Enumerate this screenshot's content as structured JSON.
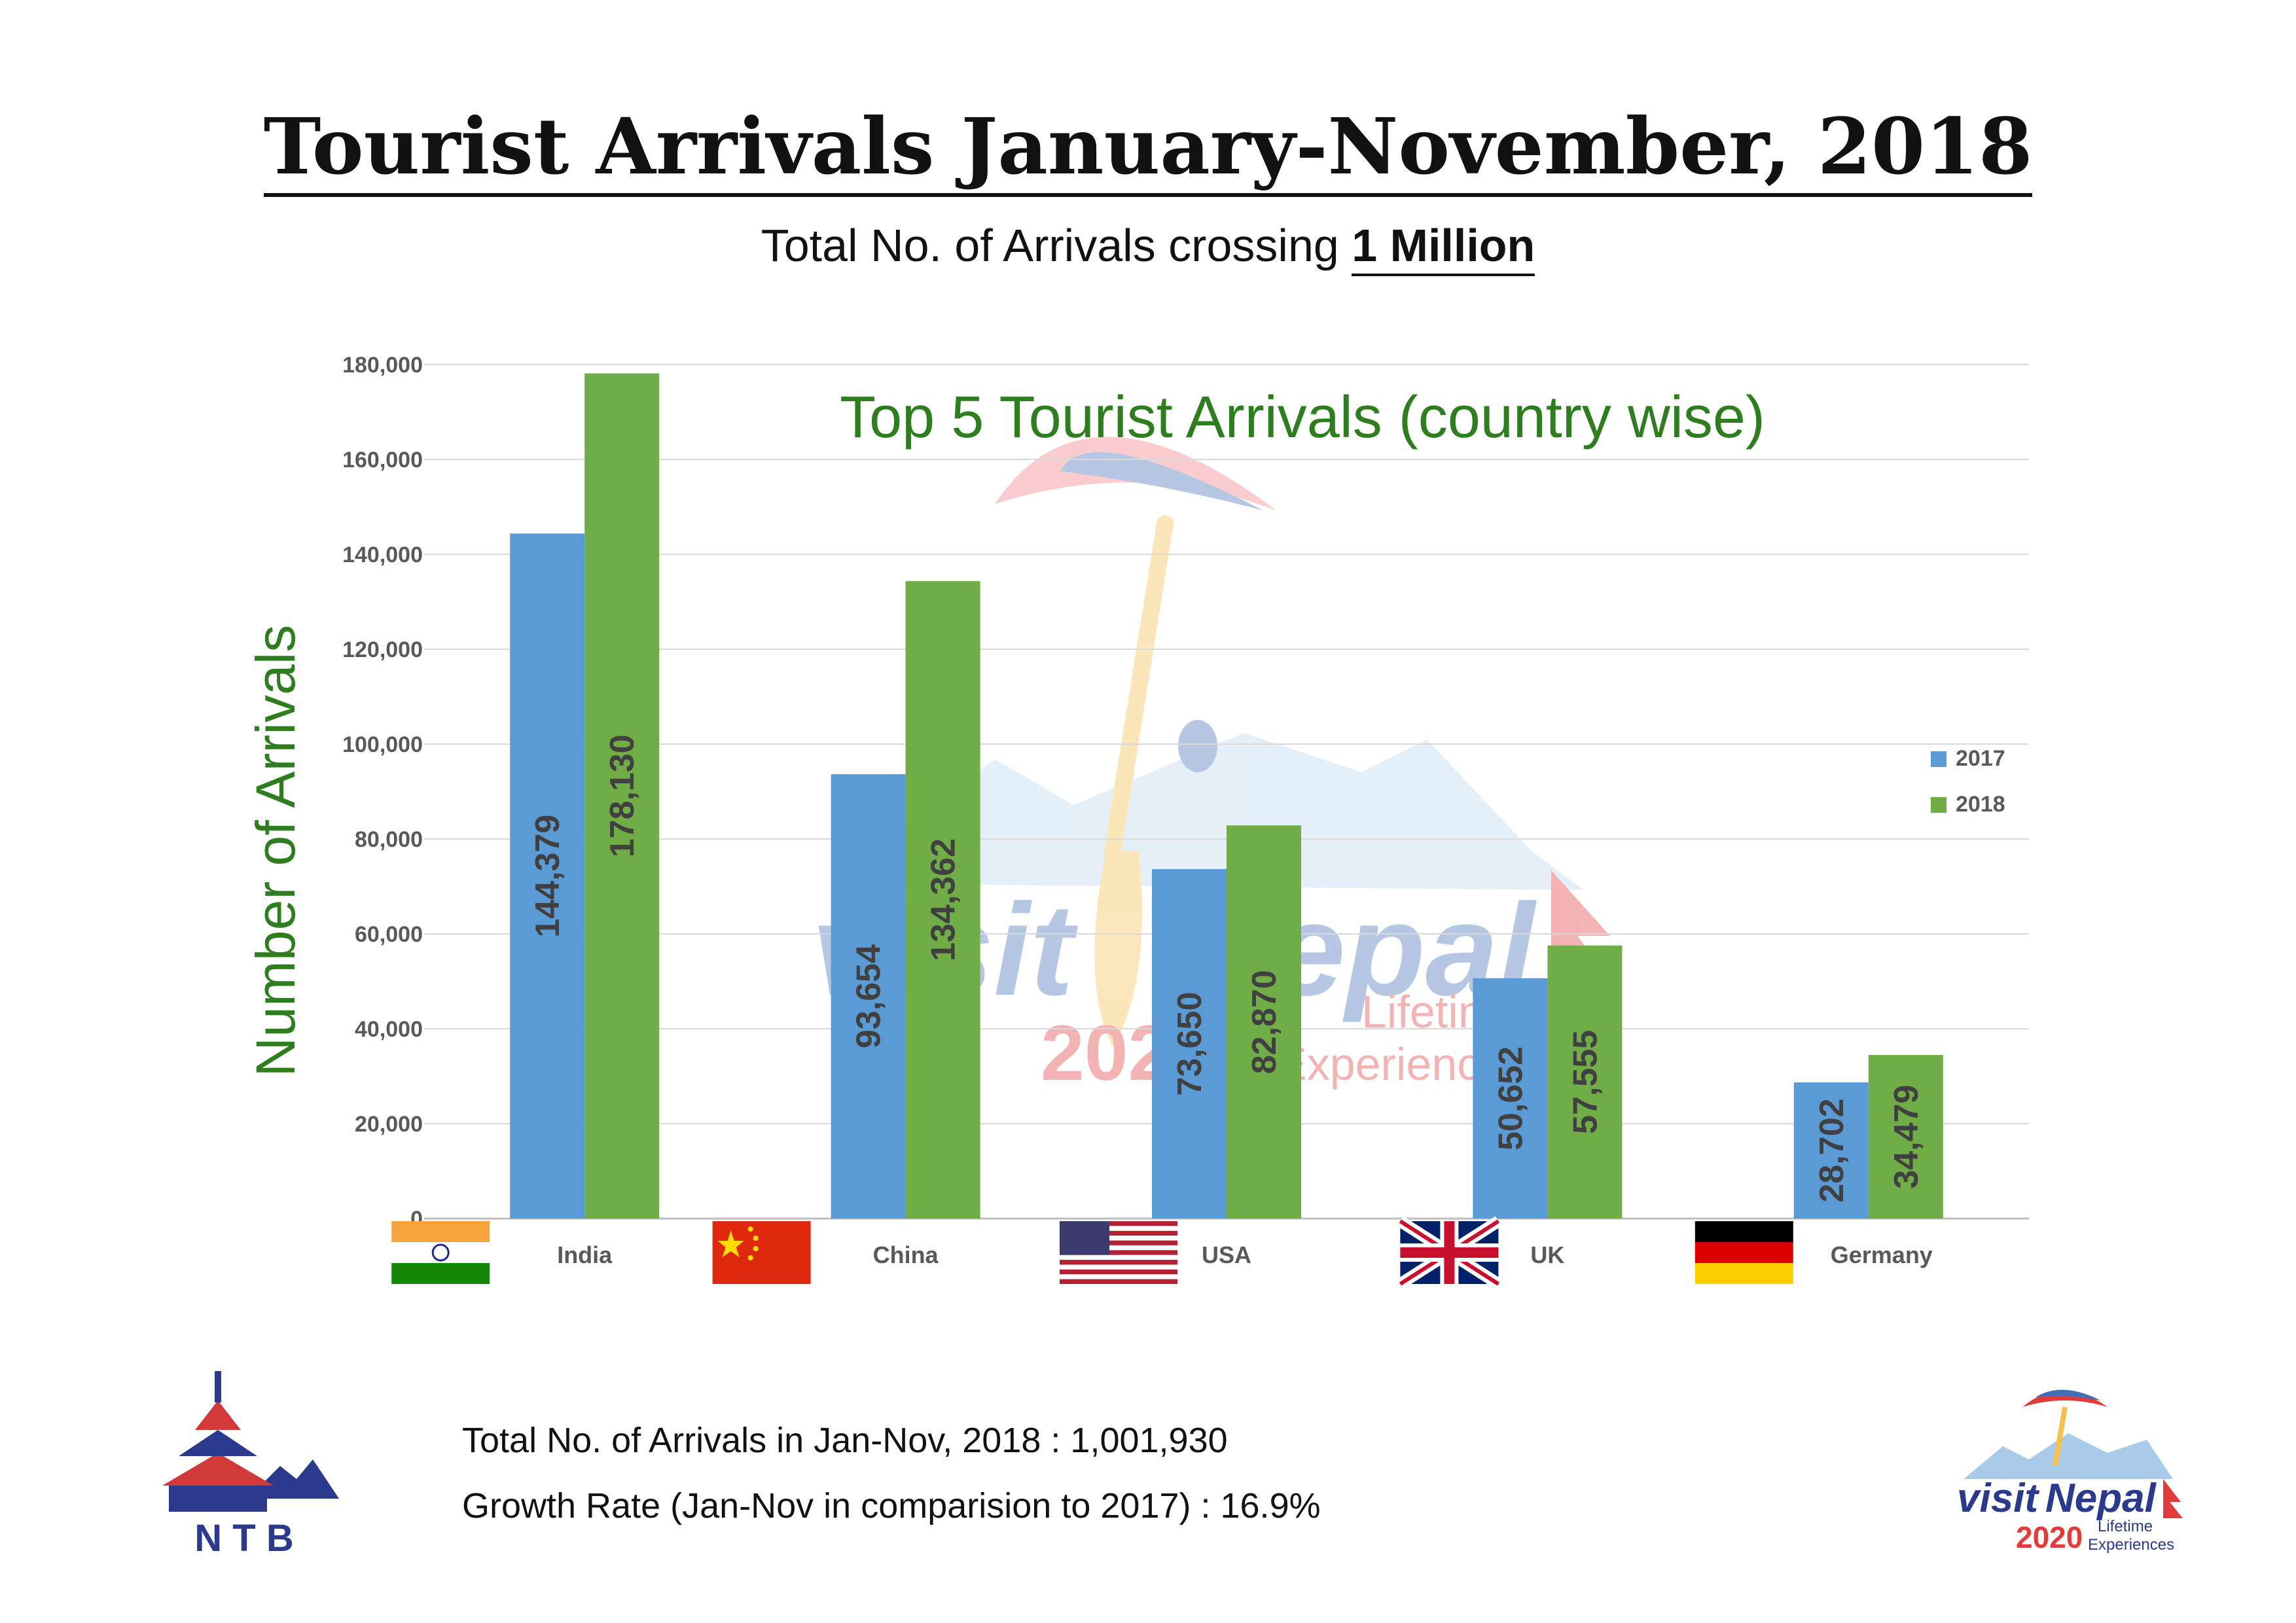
{
  "title": "Tourist Arrivals January-November, 2018",
  "subtitle": {
    "prefix": "Total No. of Arrivals crossing",
    "emphasis": "1 Million"
  },
  "chart_data": {
    "type": "bar",
    "title": "Top 5 Tourist Arrivals (country wise)",
    "xlabel": "",
    "ylabel": "Number of Arrivals",
    "categories": [
      "India",
      "China",
      "USA",
      "UK",
      "Germany"
    ],
    "series": [
      {
        "name": "2017",
        "color": "#5b9bd5",
        "values": [
          144379,
          93654,
          73650,
          50652,
          28702
        ]
      },
      {
        "name": "2018",
        "color": "#70ad47",
        "values": [
          178130,
          134362,
          82870,
          57555,
          34479
        ]
      }
    ],
    "data_labels": {
      "2017": [
        "144,379",
        "93,654",
        "73,650",
        "50,652",
        "28,702"
      ],
      "2018": [
        "178,130",
        "134,362",
        "82,870",
        "57,555",
        "34,479"
      ]
    },
    "ylim": [
      0,
      180000
    ],
    "yticks": [
      0,
      20000,
      40000,
      60000,
      80000,
      100000,
      120000,
      140000,
      160000,
      180000
    ],
    "ytick_labels": [
      "0",
      "20,000",
      "40,000",
      "60,000",
      "80,000",
      "100,000",
      "120,000",
      "140,000",
      "160,000",
      "180,000"
    ],
    "grid": true,
    "legend_position": "right",
    "category_flags": [
      "india-flag-icon",
      "china-flag-icon",
      "usa-flag-icon",
      "uk-flag-icon",
      "germany-flag-icon"
    ],
    "title_color": "#2e7d1f",
    "ylabel_color": "#2e7d1f"
  },
  "footer": {
    "total_arrivals": "Total No. of Arrivals in Jan-Nov, 2018 : 1,001,930",
    "growth_rate": "Growth Rate (Jan-Nov in comparision to 2017) : 16.9%"
  },
  "logos": {
    "left": {
      "icon": "ntb-logo-icon",
      "text": "N T B"
    },
    "right": {
      "icon": "visit-nepal-logo-icon",
      "visit": "visit",
      "nepal": "Nepal",
      "year": "2020",
      "tagline_1": "Lifetime",
      "tagline_2": "Experiences"
    },
    "watermark": {
      "visit": "visit",
      "nepal": "Nepal",
      "year": "2020",
      "tagline_1": "Lifetime",
      "tagline_2": "Experiences"
    }
  }
}
